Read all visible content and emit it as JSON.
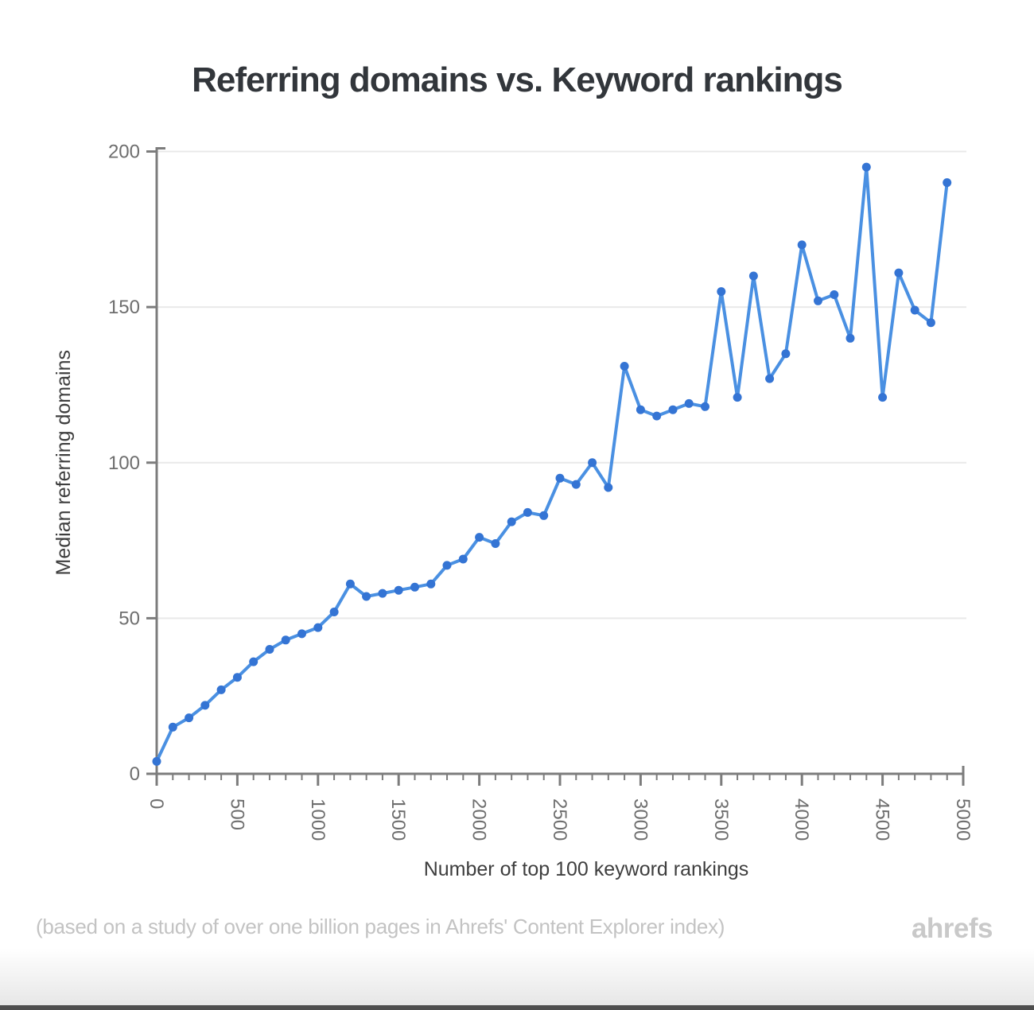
{
  "page": {
    "background": "#ffffff",
    "bottom_bar_color": "#4e4e4e"
  },
  "title": {
    "text": "Referring domains vs. Keyword rankings",
    "color": "#32363b"
  },
  "footer": {
    "note": "(based on a study of over one billion pages in Ahrefs' Content Explorer index)",
    "note_color": "#c3c3c3",
    "brand": "ahrefs",
    "brand_color": "#c9c9c9"
  },
  "chart_data": {
    "type": "line",
    "title": "Referring domains vs. Keyword rankings",
    "xlabel": "Number of top 100 keyword rankings",
    "ylabel": "Median referring domains",
    "x": [
      0,
      100,
      200,
      300,
      400,
      500,
      600,
      700,
      800,
      900,
      1000,
      1100,
      1200,
      1300,
      1400,
      1500,
      1600,
      1700,
      1800,
      1900,
      2000,
      2100,
      2200,
      2300,
      2400,
      2500,
      2600,
      2700,
      2800,
      2900,
      3000,
      3100,
      3200,
      3300,
      3400,
      3500,
      3600,
      3700,
      3800,
      3900,
      4000,
      4100,
      4200,
      4300,
      4400,
      4500,
      4600,
      4700,
      4800,
      4900
    ],
    "series": [
      {
        "name": "Median referring domains",
        "values": [
          4,
          15,
          18,
          22,
          27,
          31,
          36,
          40,
          43,
          45,
          47,
          52,
          61,
          57,
          58,
          59,
          60,
          61,
          67,
          69,
          76,
          74,
          81,
          84,
          83,
          95,
          93,
          100,
          92,
          131,
          117,
          115,
          117,
          119,
          118,
          155,
          121,
          160,
          127,
          135,
          170,
          152,
          154,
          140,
          195,
          121,
          161,
          149,
          145,
          190
        ]
      }
    ],
    "xlim": [
      0,
      5000
    ],
    "ylim": [
      0,
      200
    ],
    "x_major_ticks": [
      0,
      500,
      1000,
      1500,
      2000,
      2500,
      3000,
      3500,
      4000,
      4500,
      5000
    ],
    "x_minor_tick_step": 100,
    "y_ticks": [
      0,
      50,
      100,
      150,
      200
    ],
    "grid": "horizontal",
    "legend": "none",
    "line_color": "#4a90e2",
    "marker_color": "#3474d4",
    "grid_color": "#e9e9e9",
    "axis_color": "#7c7c7c",
    "tick_label_color": "#6e6e6e",
    "axis_label_color": "#3e3e3e"
  }
}
